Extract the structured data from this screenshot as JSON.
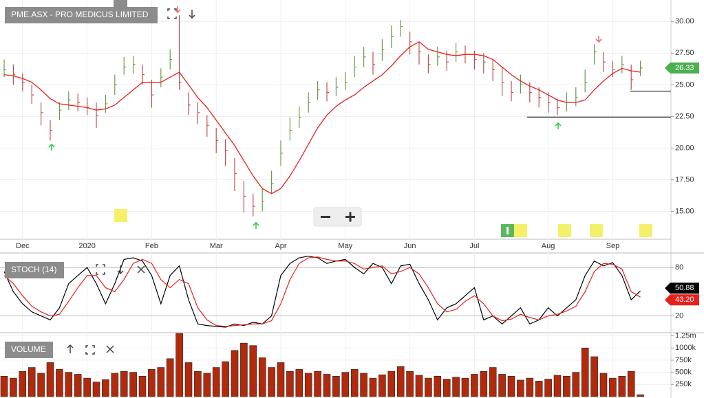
{
  "chart_data": [
    {
      "type": "stock",
      "title": "PME.ASX - PRO MEDICUS LIMITED",
      "categories": [
        null,
        null,
        "Dec",
        null,
        null,
        null,
        null,
        null,
        null,
        "2020",
        null,
        null,
        null,
        null,
        null,
        null,
        "Feb",
        null,
        null,
        null,
        null,
        null,
        null,
        "Mar",
        null,
        null,
        null,
        null,
        null,
        null,
        "Apr",
        null,
        null,
        null,
        null,
        null,
        null,
        "May",
        null,
        null,
        null,
        null,
        null,
        null,
        "Jun",
        null,
        null,
        null,
        null,
        null,
        null,
        "Jul",
        null,
        null,
        null,
        null,
        null,
        null,
        null,
        "Aug",
        null,
        null,
        null,
        null,
        null,
        null,
        "Sep",
        null,
        null,
        null
      ],
      "high": [
        27.0,
        26.6,
        25.9,
        25.0,
        23.6,
        22.2,
        23.6,
        24.5,
        24.3,
        24.0,
        23.6,
        24.2,
        25.8,
        27.2,
        27.3,
        26.6,
        25.4,
        26.3,
        27.8,
        30.5,
        24.4,
        23.6,
        22.6,
        21.6,
        20.7,
        19.2,
        17.4,
        16.4,
        16.8,
        18.2,
        20.6,
        22.4,
        23.3,
        24.4,
        25.3,
        25.2,
        25.6,
        26.0,
        27.3,
        28.0,
        27.6,
        28.6,
        29.7,
        30.1,
        29.2,
        28.4,
        27.4,
        28.0,
        27.7,
        28.3,
        28.1,
        27.7,
        27.5,
        27.0,
        26.4,
        25.3,
        25.8,
        25.2,
        24.8,
        24.4,
        23.9,
        24.4,
        24.8,
        26.2,
        28.2,
        27.6,
        26.9,
        27.3,
        26.6,
        26.9
      ],
      "low": [
        25.6,
        25.0,
        24.5,
        23.5,
        21.8,
        20.6,
        22.2,
        23.0,
        22.9,
        22.6,
        21.6,
        22.8,
        24.2,
        25.8,
        25.9,
        25.0,
        23.2,
        24.8,
        26.2,
        24.6,
        22.6,
        21.9,
        20.9,
        19.6,
        18.6,
        16.6,
        14.9,
        14.6,
        15.0,
        16.4,
        18.6,
        20.6,
        21.6,
        22.8,
        23.8,
        23.7,
        24.1,
        24.6,
        25.6,
        26.4,
        25.8,
        26.9,
        27.9,
        28.8,
        27.4,
        26.6,
        25.9,
        26.5,
        26.1,
        26.8,
        26.7,
        26.2,
        25.9,
        25.3,
        24.1,
        23.7,
        24.3,
        23.6,
        23.2,
        22.8,
        22.6,
        22.9,
        23.3,
        24.4,
        26.6,
        26.0,
        25.6,
        25.9,
        24.6,
        25.7
      ],
      "close": [
        26.2,
        25.8,
        25.2,
        24.2,
        22.8,
        21.4,
        23.0,
        23.8,
        23.6,
        23.2,
        22.6,
        23.5,
        25.0,
        26.4,
        26.6,
        25.8,
        24.2,
        25.6,
        27.0,
        25.2,
        23.4,
        22.8,
        21.8,
        20.6,
        19.8,
        18.0,
        16.2,
        15.4,
        15.8,
        17.2,
        19.6,
        21.4,
        22.4,
        23.6,
        24.6,
        24.4,
        24.8,
        25.2,
        26.4,
        27.2,
        26.6,
        27.8,
        28.8,
        29.6,
        28.4,
        27.6,
        26.6,
        27.2,
        26.8,
        27.6,
        27.4,
        27.0,
        26.8,
        26.2,
        25.2,
        24.4,
        25.0,
        24.4,
        24.0,
        23.6,
        23.2,
        23.6,
        24.0,
        25.2,
        27.6,
        26.8,
        26.2,
        26.6,
        25.4,
        26.33
      ],
      "moving_average": [
        25.8,
        25.7,
        25.5,
        25.2,
        24.6,
        23.9,
        23.5,
        23.4,
        23.3,
        23.2,
        23.0,
        23.1,
        23.4,
        24.0,
        24.6,
        25.2,
        25.2,
        25.2,
        25.6,
        26.0,
        25.0,
        24.0,
        23.2,
        22.2,
        21.2,
        20.2,
        19.0,
        17.8,
        16.8,
        16.4,
        16.8,
        17.8,
        19.0,
        20.3,
        21.6,
        22.6,
        23.3,
        23.8,
        24.2,
        24.8,
        25.3,
        25.8,
        26.5,
        27.3,
        28.0,
        28.4,
        27.8,
        27.6,
        27.4,
        27.3,
        27.4,
        27.4,
        27.3,
        27.0,
        26.4,
        25.8,
        25.3,
        24.9,
        24.6,
        24.2,
        23.8,
        23.6,
        23.6,
        23.8,
        24.6,
        25.3,
        25.9,
        26.3,
        26.1,
        26.0
      ],
      "up_color": "#6a9a4a",
      "down_color": "#c0504d",
      "ma_color": "#e8201c",
      "levels": [
        22.45,
        24.5
      ],
      "last_label": "26.33",
      "last_color": "#4caf50",
      "ylim": [
        12.8,
        31.7
      ],
      "yticks": [
        {
          "value": 15,
          "label": "15.00"
        },
        {
          "value": 17.5,
          "label": "17.50"
        },
        {
          "value": 20,
          "label": "20.00"
        },
        {
          "value": 22.5,
          "label": "22.50"
        },
        {
          "value": 25,
          "label": "25.00"
        },
        {
          "value": 27.5,
          "label": "27.50"
        },
        {
          "value": 30,
          "label": "30.00"
        }
      ],
      "grid": true
    },
    {
      "type": "line",
      "title": "STOCH (14)",
      "series": [
        {
          "color": "#000000",
          "values": [
            75,
            50,
            35,
            25,
            20,
            15,
            30,
            60,
            70,
            80,
            60,
            35,
            60,
            90,
            92,
            88,
            70,
            35,
            70,
            82,
            40,
            10,
            8,
            7,
            6,
            10,
            8,
            12,
            10,
            20,
            70,
            85,
            92,
            94,
            92,
            85,
            88,
            90,
            80,
            72,
            85,
            80,
            60,
            82,
            84,
            60,
            40,
            15,
            30,
            35,
            45,
            55,
            15,
            20,
            10,
            20,
            30,
            10,
            15,
            30,
            20,
            30,
            40,
            70,
            88,
            82,
            86,
            70,
            40,
            50.88
          ],
          "last_label": "50.88"
        },
        {
          "color": "#e8201c",
          "values": [
            70,
            60,
            45,
            32,
            25,
            20,
            22,
            38,
            55,
            70,
            70,
            55,
            50,
            65,
            85,
            90,
            85,
            65,
            55,
            65,
            60,
            30,
            15,
            8,
            7,
            8,
            9,
            10,
            10,
            14,
            35,
            65,
            85,
            92,
            93,
            90,
            88,
            88,
            85,
            78,
            80,
            82,
            72,
            75,
            80,
            72,
            55,
            35,
            25,
            28,
            38,
            45,
            35,
            20,
            14,
            16,
            22,
            18,
            15,
            20,
            22,
            26,
            32,
            50,
            75,
            85,
            84,
            78,
            50,
            43.2
          ],
          "last_label": "43.20"
        }
      ],
      "ylim": [
        0,
        98
      ],
      "yticks": [
        20,
        80
      ],
      "grid": true
    },
    {
      "type": "bar",
      "title": "VOLUME",
      "color": "#b22a0c",
      "values": [
        420000,
        380000,
        520000,
        600000,
        480000,
        700000,
        560000,
        500000,
        460000,
        380000,
        300000,
        350000,
        480000,
        520000,
        500000,
        420000,
        560000,
        600000,
        780000,
        1300000,
        700000,
        520000,
        480000,
        600000,
        720000,
        950000,
        1100000,
        1050000,
        800000,
        600000,
        700000,
        520000,
        560000,
        480000,
        520000,
        460000,
        420000,
        500000,
        560000,
        480000,
        380000,
        450000,
        520000,
        620000,
        520000,
        440000,
        380000,
        420000,
        360000,
        400000,
        380000,
        460000,
        520000,
        600000,
        460000,
        420000,
        340000,
        380000,
        320000,
        360000,
        440000,
        420000,
        500000,
        1000000,
        820000,
        480000,
        380000,
        420000,
        520000,
        40000
      ],
      "ylim": [
        0,
        1300000
      ],
      "yticks": [
        {
          "value": 250000,
          "label": "250k"
        },
        {
          "value": 500000,
          "label": "500k"
        },
        {
          "value": 750000,
          "label": "750k"
        },
        {
          "value": 1000000,
          "label": "1000k"
        },
        {
          "value": 1250000,
          "label": "1.25m"
        }
      ],
      "grid": true
    }
  ]
}
